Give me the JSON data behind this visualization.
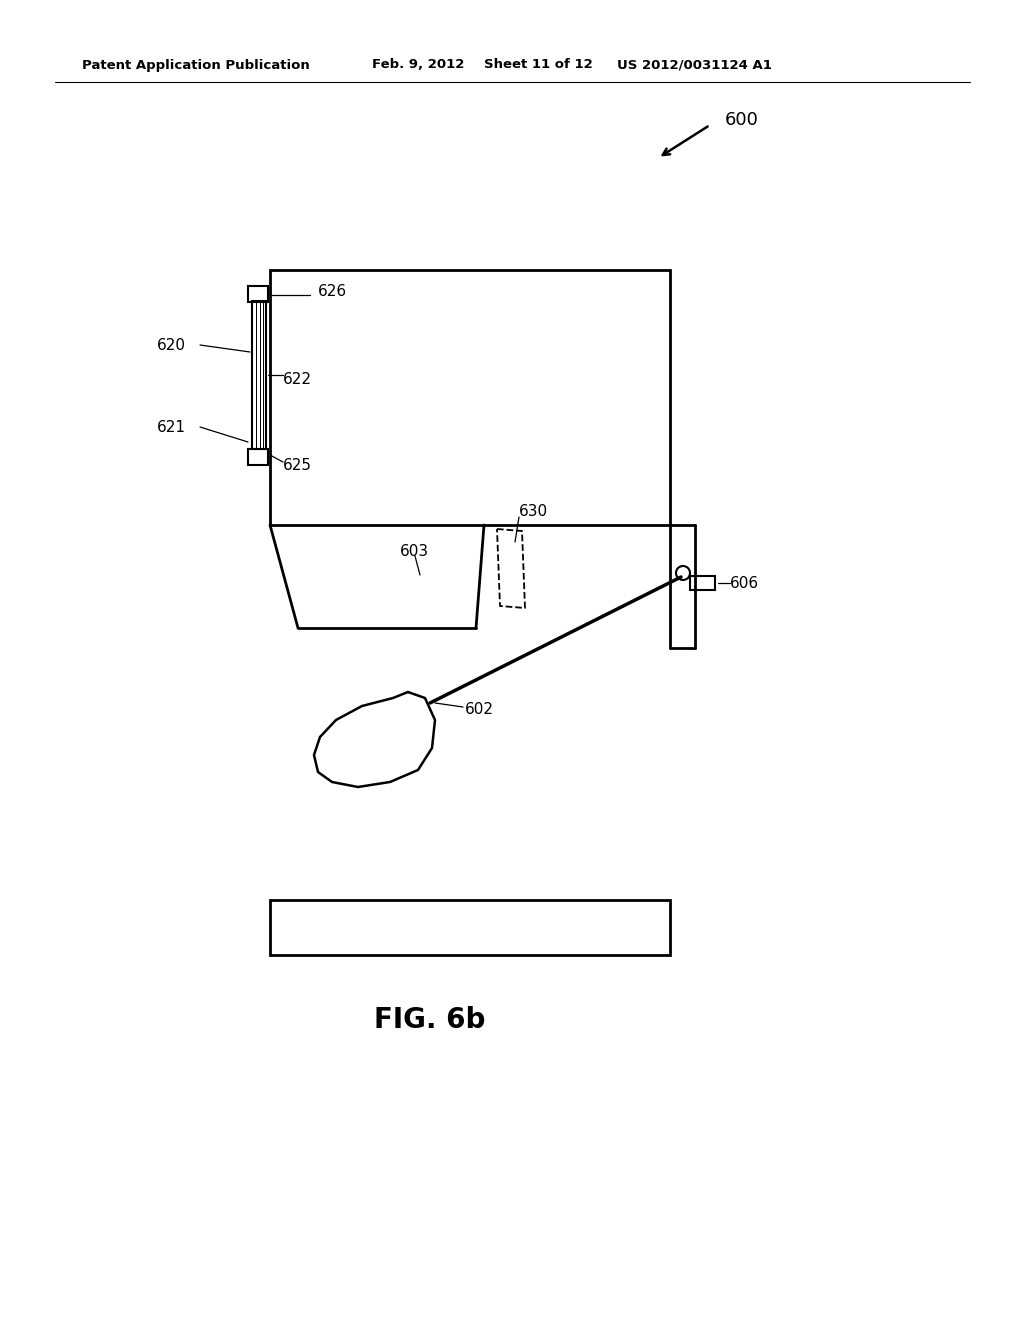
{
  "bg_color": "#ffffff",
  "line_color": "#000000",
  "header_text": "Patent Application Publication",
  "header_date": "Feb. 9, 2012",
  "header_sheet": "Sheet 11 of 12",
  "header_patent": "US 2012/0031124 A1",
  "fig_label": "FIG. 6b",
  "label_600": "600",
  "label_620": "620",
  "label_621": "621",
  "label_622": "622",
  "label_625": "625",
  "label_626": "626",
  "label_603": "603",
  "label_630": "630",
  "label_602": "602",
  "label_606": "606"
}
